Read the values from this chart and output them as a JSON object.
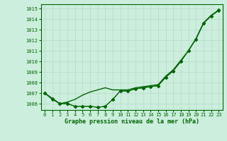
{
  "title": "Graphe pression niveau de la mer (hPa)",
  "background_color": "#cceedd",
  "grid_color": "#bbddcc",
  "text_color": "#006600",
  "line_color": "#006600",
  "xlim": [
    -0.5,
    23.5
  ],
  "ylim": [
    1005.4,
    1015.4
  ],
  "yticks": [
    1006,
    1007,
    1008,
    1009,
    1010,
    1011,
    1012,
    1013,
    1014,
    1015
  ],
  "xticks": [
    0,
    1,
    2,
    3,
    4,
    5,
    6,
    7,
    8,
    9,
    10,
    11,
    12,
    13,
    14,
    15,
    16,
    17,
    18,
    19,
    20,
    21,
    22,
    23
  ],
  "series": [
    {
      "x": [
        0,
        1,
        2,
        3,
        4,
        5,
        6,
        7,
        8,
        9,
        10,
        11,
        12,
        13,
        14,
        15,
        16,
        17,
        18,
        19,
        20,
        21,
        22,
        23
      ],
      "y": [
        1007.0,
        1006.4,
        1006.0,
        1006.0,
        1005.75,
        1005.75,
        1005.75,
        1005.65,
        1005.75,
        1006.4,
        1007.2,
        1007.2,
        1007.4,
        1007.5,
        1007.6,
        1007.7,
        1008.5,
        1009.1,
        1010.0,
        1011.0,
        1012.1,
        1013.6,
        1014.3,
        1014.8
      ],
      "marker": "D",
      "markersize": 2.5,
      "lw": 0.8
    },
    {
      "x": [
        0,
        1,
        2,
        3,
        4,
        5,
        6,
        7,
        8,
        9,
        10,
        11,
        12,
        13,
        14,
        15,
        16,
        17,
        18,
        19,
        20,
        21,
        22,
        23
      ],
      "y": [
        1007.0,
        1006.5,
        1006.0,
        1006.0,
        1005.75,
        1005.75,
        1005.75,
        1005.65,
        1005.75,
        1006.4,
        1007.2,
        1007.2,
        1007.4,
        1007.5,
        1007.6,
        1007.7,
        1008.5,
        1009.1,
        1010.0,
        1011.0,
        1012.1,
        1013.6,
        1014.3,
        1014.85
      ],
      "marker": "D",
      "markersize": 2.5,
      "lw": 0.8
    },
    {
      "x": [
        0,
        1,
        2,
        3,
        4,
        5,
        6,
        7,
        8,
        9,
        10,
        11,
        12,
        13,
        14,
        15,
        16,
        17,
        18,
        19,
        20,
        21,
        22,
        23
      ],
      "y": [
        1007.0,
        1006.5,
        1006.0,
        1006.15,
        1006.4,
        1006.8,
        1007.1,
        1007.3,
        1007.5,
        1007.3,
        1007.3,
        1007.3,
        1007.5,
        1007.6,
        1007.7,
        1007.8,
        1008.6,
        1009.2,
        1010.1,
        1011.0,
        1012.15,
        1013.65,
        1014.35,
        1014.85
      ],
      "marker": null,
      "markersize": 0,
      "lw": 1.0
    }
  ]
}
